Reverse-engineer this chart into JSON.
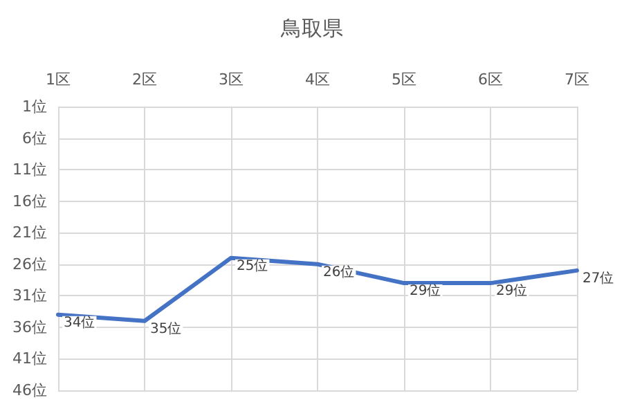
{
  "chart_data": {
    "type": "line",
    "title": "鳥取県",
    "categories": [
      "1区",
      "2区",
      "3区",
      "4区",
      "5区",
      "6区",
      "7区"
    ],
    "series": [
      {
        "color": "#4472c4",
        "values": [
          34,
          35,
          25,
          26,
          29,
          29,
          27
        ],
        "value_labels": [
          "34位",
          "35位",
          "25位",
          "26位",
          "29位",
          "29位",
          "27位"
        ]
      }
    ],
    "ylim": [
      46,
      1
    ],
    "yticks": [
      {
        "value": 1,
        "label": "1位"
      },
      {
        "value": 6,
        "label": "6位"
      },
      {
        "value": 11,
        "label": "11位"
      },
      {
        "value": 16,
        "label": "16位"
      },
      {
        "value": 21,
        "label": "21位"
      },
      {
        "value": 26,
        "label": "26位"
      },
      {
        "value": 31,
        "label": "31位"
      },
      {
        "value": 36,
        "label": "36位"
      },
      {
        "value": 41,
        "label": "41位"
      },
      {
        "value": 46,
        "label": "46位"
      }
    ],
    "grid": true,
    "marker": "none",
    "line_style": "solid"
  }
}
